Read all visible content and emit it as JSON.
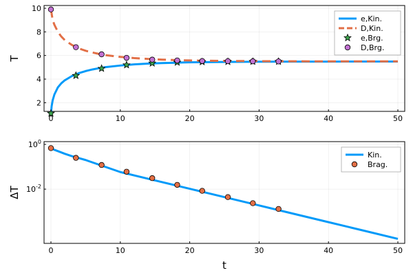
{
  "chart_data": [
    {
      "type": "line",
      "xlabel": "",
      "ylabel": "T",
      "xlim": [
        0,
        50
      ],
      "ylim": [
        1.5,
        10
      ],
      "xticks": [
        0,
        10,
        20,
        30,
        40,
        50
      ],
      "yticks": [
        2,
        4,
        6,
        8,
        10
      ],
      "grid": true,
      "legend_position": "top-right",
      "series": [
        {
          "name": "e,Kin.",
          "style": "solid line",
          "color": "#009af9",
          "x": [
            0,
            0.1,
            0.25,
            0.5,
            1,
            1.5,
            2,
            3,
            4,
            5,
            6,
            7,
            8,
            10,
            12,
            14,
            16,
            18,
            20,
            25,
            30,
            35,
            40,
            45,
            50
          ],
          "y": [
            1.0,
            1.7,
            2.2,
            2.7,
            3.3,
            3.65,
            3.9,
            4.25,
            4.5,
            4.68,
            4.82,
            4.93,
            5.02,
            5.15,
            5.25,
            5.31,
            5.36,
            5.39,
            5.42,
            5.45,
            5.47,
            5.48,
            5.48,
            5.49,
            5.49
          ]
        },
        {
          "name": "D,Kin.",
          "style": "dashed line",
          "color": "#e26f46",
          "x": [
            0,
            0.25,
            0.5,
            1,
            1.5,
            2,
            3,
            4,
            5,
            6,
            7,
            8,
            10,
            12,
            14,
            16,
            18,
            20,
            25,
            30,
            35,
            40,
            45,
            50
          ],
          "y": [
            9.9,
            9.0,
            8.6,
            8.0,
            7.6,
            7.3,
            6.9,
            6.6,
            6.4,
            6.25,
            6.12,
            6.02,
            5.88,
            5.78,
            5.71,
            5.65,
            5.61,
            5.58,
            5.54,
            5.52,
            5.51,
            5.5,
            5.5,
            5.5
          ]
        },
        {
          "name": "e,Brg.",
          "style": "star markers",
          "color": "#3da44d",
          "x": [
            0,
            3.6,
            7.3,
            10.9,
            14.6,
            18.2,
            21.8,
            25.5,
            29.1,
            32.8
          ],
          "y": [
            1.1,
            4.3,
            4.9,
            5.2,
            5.35,
            5.42,
            5.46,
            5.48,
            5.49,
            5.49
          ]
        },
        {
          "name": "D,Brg.",
          "style": "circle markers",
          "color": "#c271d2",
          "x": [
            0,
            3.6,
            7.3,
            10.9,
            14.6,
            18.2,
            21.8,
            25.5,
            29.1,
            32.8
          ],
          "y": [
            9.9,
            6.7,
            6.1,
            5.8,
            5.65,
            5.58,
            5.53,
            5.52,
            5.51,
            5.5
          ]
        }
      ]
    },
    {
      "type": "line",
      "xlabel": "t",
      "ylabel": "ΔT",
      "y_scale": "log",
      "xlim": [
        0,
        50
      ],
      "ylim": [
        5e-05,
        1
      ],
      "xticks": [
        0,
        10,
        20,
        30,
        40,
        50
      ],
      "yticks": [
        0.01,
        1
      ],
      "ytick_labels": [
        {
          "base": "10",
          "exp": "-2"
        },
        {
          "base": "10",
          "exp": "0"
        }
      ],
      "grid": true,
      "legend_position": "top-right",
      "series": [
        {
          "name": "Kin.",
          "style": "solid line",
          "color": "#009af9",
          "x": [
            0,
            0.5,
            1,
            2,
            3,
            5,
            10,
            15,
            20,
            25,
            30,
            35,
            40,
            45,
            50
          ],
          "y": [
            0.68,
            0.57,
            0.5,
            0.38,
            0.3,
            0.2,
            0.058,
            0.0245,
            0.0104,
            0.0044,
            0.00187,
            0.00079,
            0.000335,
            0.000142,
            6e-05
          ]
        },
        {
          "name": "Brag.",
          "style": "circle markers",
          "color": "#e26f46",
          "x": [
            0,
            3.6,
            7.3,
            10.9,
            14.6,
            18.2,
            21.8,
            25.5,
            29.1,
            32.8
          ],
          "y": [
            0.68,
            0.25,
            0.12,
            0.06,
            0.031,
            0.0155,
            0.0084,
            0.0044,
            0.00235,
            0.0013
          ]
        }
      ]
    }
  ]
}
